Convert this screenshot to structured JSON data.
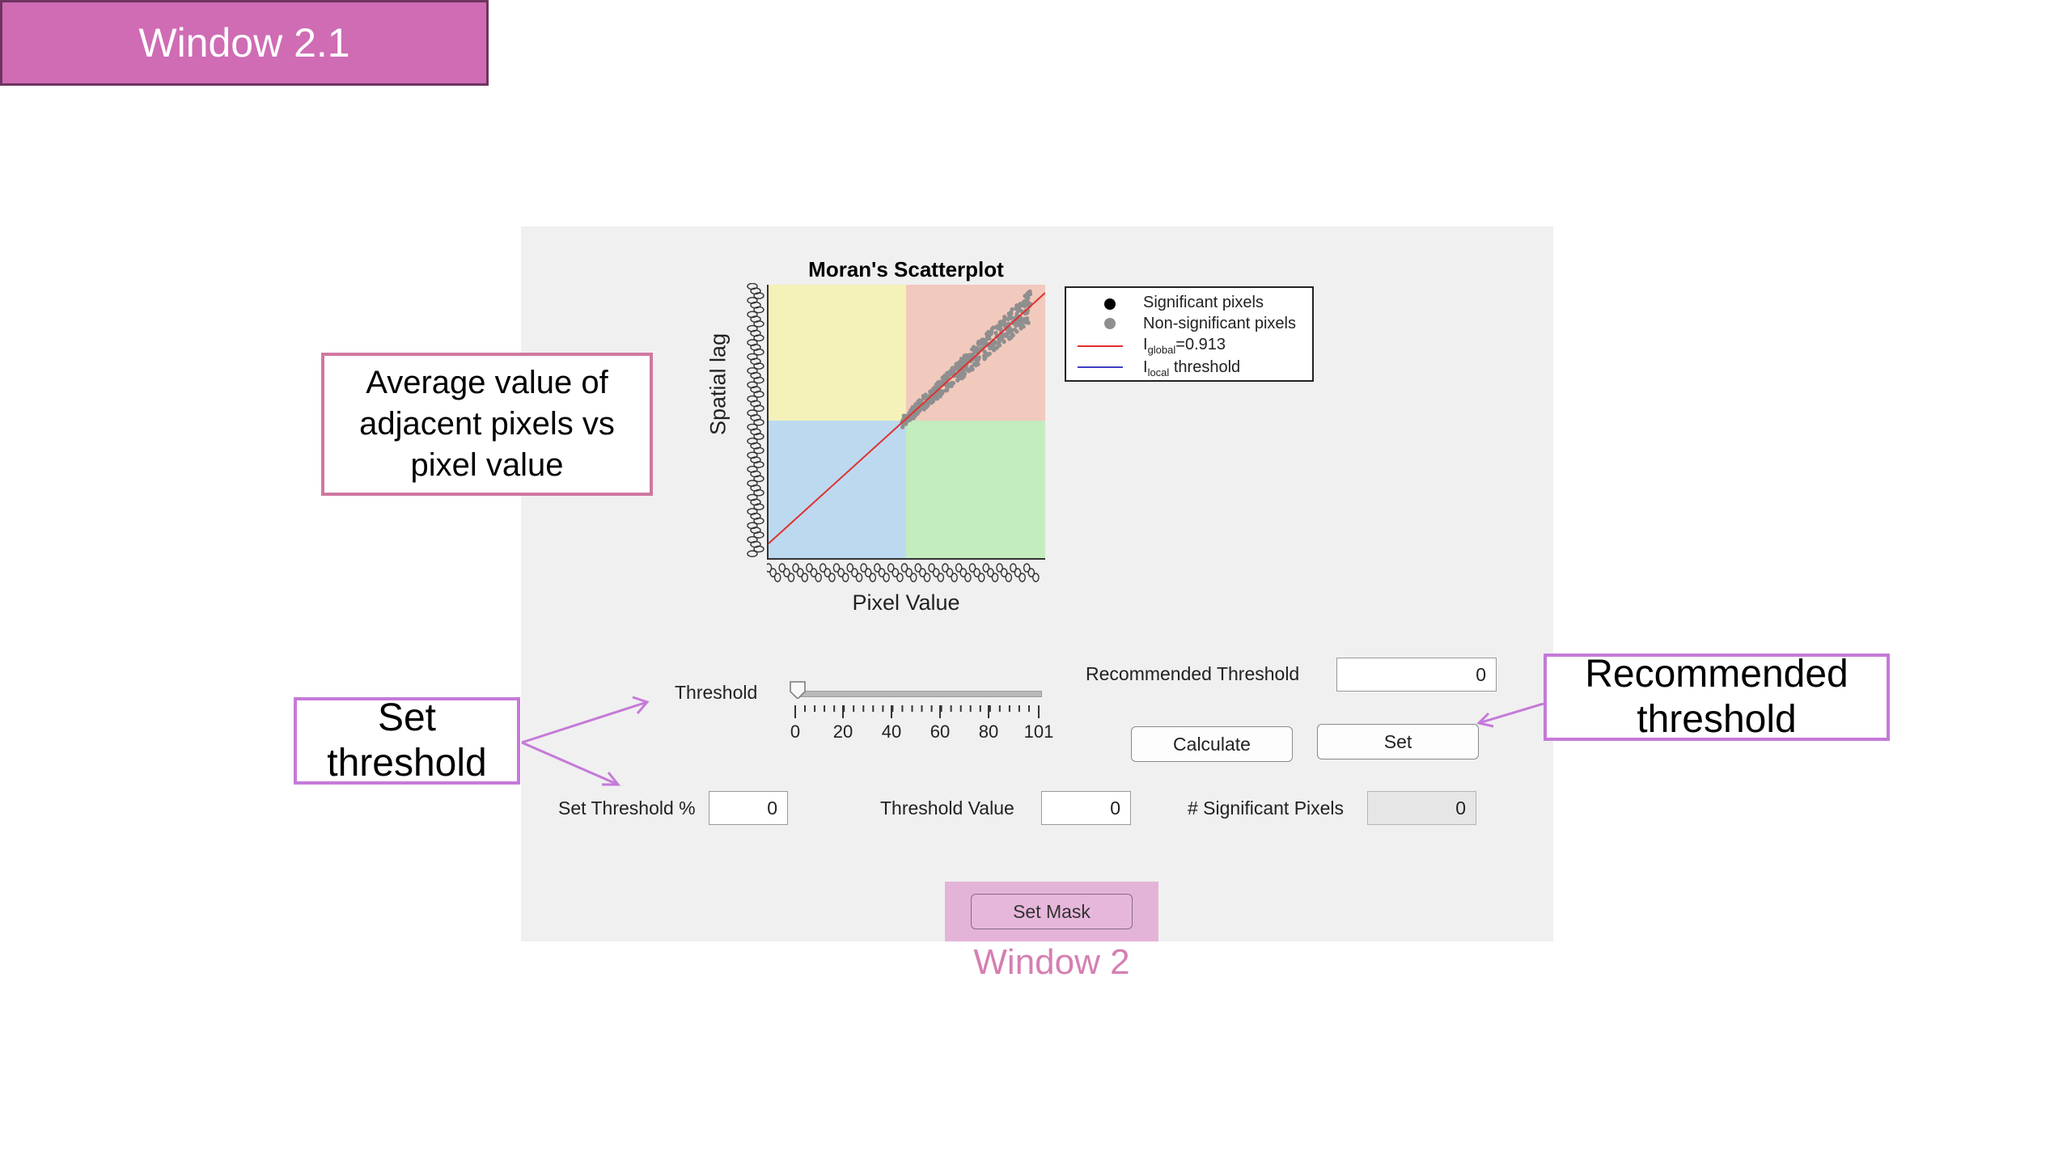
{
  "header": {
    "title": "Window 2.1"
  },
  "chart_data": {
    "type": "scatter",
    "title": "Moran's Scatterplot",
    "xlabel": "Pixel Value",
    "ylabel": "Spatial lag",
    "legend": {
      "placement": "outside-right",
      "entries": [
        {
          "label": "Significant pixels",
          "marker": "dot",
          "color": "#000000"
        },
        {
          "label": "Non-significant pixels",
          "marker": "dot",
          "color": "#8f8f8f"
        },
        {
          "label_main": "I",
          "label_sub": "global",
          "label_rest": "=0.913",
          "marker": "line",
          "color": "#e03030"
        },
        {
          "label_main": "I",
          "label_sub": "local",
          "label_rest": " threshold",
          "marker": "line",
          "color": "#3f3fc4"
        }
      ]
    },
    "quadrant_colors": {
      "top_left": "#f4f2b8",
      "top_right": "#f2c9bd",
      "bottom_left": "#bcd9f0",
      "bottom_right": "#c3ecbf"
    },
    "global_I": 0.913
  },
  "controls": {
    "threshold_label": "Threshold",
    "slider": {
      "min": 0,
      "max": 101,
      "value": 0,
      "tick_labels": [
        "0",
        "20",
        "40",
        "60",
        "80",
        "101"
      ]
    },
    "recommended_threshold_label": "Recommended Threshold",
    "recommended_threshold_value": "0",
    "calculate_label": "Calculate",
    "set_label": "Set",
    "set_threshold_pct_label": "Set Threshold %",
    "set_threshold_pct_value": "0",
    "threshold_value_label": "Threshold Value",
    "threshold_value_value": "0",
    "significant_pixels_label": "# Significant Pixels",
    "significant_pixels_value": "0",
    "set_mask_label": "Set Mask"
  },
  "window_label": "Window 2",
  "callouts": {
    "avg": "Average value of adjacent pixels vs pixel value",
    "set_threshold": "Set threshold",
    "recommended": "Recommended threshold"
  },
  "colors": {
    "banner": "#cf6cb4",
    "callout_pink": "#cf78a0",
    "callout_purple": "#c57ad8",
    "accent_label": "#d57fb2"
  }
}
